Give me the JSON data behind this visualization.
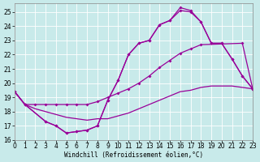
{
  "bg_color": "#c8eaea",
  "line_color": "#990099",
  "grid_color": "#aad4d4",
  "xlim": [
    0,
    23
  ],
  "ylim": [
    16,
    25.6
  ],
  "yticks": [
    16,
    17,
    18,
    19,
    20,
    21,
    22,
    23,
    24,
    25
  ],
  "xticks": [
    0,
    1,
    2,
    3,
    4,
    5,
    6,
    7,
    8,
    9,
    10,
    11,
    12,
    13,
    14,
    15,
    16,
    17,
    18,
    19,
    20,
    21,
    22,
    23
  ],
  "xlabel": "Windchill (Refroidissement éolien,°C)",
  "curve1_x": [
    0,
    1,
    3,
    4,
    5,
    6,
    7,
    8,
    9,
    10,
    11,
    12,
    13,
    14,
    15,
    16,
    17,
    18,
    19,
    20,
    21,
    22,
    23
  ],
  "curve1_y": [
    19.4,
    18.5,
    17.3,
    17.0,
    16.5,
    16.6,
    16.7,
    17.0,
    18.8,
    20.2,
    22.0,
    22.8,
    23.0,
    24.1,
    24.4,
    25.3,
    25.1,
    24.3,
    22.8,
    22.8,
    21.7,
    20.5,
    19.6
  ],
  "curve2_x": [
    0,
    1,
    3,
    4,
    5,
    6,
    7,
    8,
    9,
    10,
    11,
    12,
    13,
    14,
    15,
    16,
    17,
    18,
    19,
    20,
    21,
    22,
    23
  ],
  "curve2_y": [
    19.4,
    18.5,
    17.3,
    17.0,
    16.5,
    16.6,
    16.7,
    17.0,
    18.8,
    20.2,
    22.0,
    22.8,
    23.0,
    24.1,
    24.4,
    25.1,
    25.0,
    24.3,
    22.8,
    22.8,
    21.7,
    20.5,
    19.6
  ],
  "curve3_x": [
    0,
    1,
    2,
    3,
    4,
    5,
    6,
    7,
    8,
    9,
    10,
    11,
    12,
    13,
    14,
    15,
    16,
    17,
    18,
    22,
    23
  ],
  "curve3_y": [
    19.4,
    18.5,
    18.5,
    18.5,
    18.5,
    18.5,
    18.5,
    18.5,
    18.7,
    19.0,
    19.3,
    19.6,
    20.0,
    20.5,
    21.1,
    21.6,
    22.1,
    22.4,
    22.7,
    22.8,
    19.6
  ],
  "curve4_x": [
    0,
    1,
    2,
    3,
    4,
    5,
    6,
    7,
    8,
    9,
    10,
    11,
    12,
    13,
    14,
    15,
    16,
    17,
    18,
    19,
    20,
    21,
    22,
    23
  ],
  "curve4_y": [
    19.4,
    18.5,
    18.2,
    18.0,
    17.8,
    17.6,
    17.5,
    17.4,
    17.5,
    17.5,
    17.7,
    17.9,
    18.2,
    18.5,
    18.8,
    19.1,
    19.4,
    19.5,
    19.7,
    19.8,
    19.8,
    19.8,
    19.7,
    19.6
  ],
  "tick_fontsize": 5.5,
  "xlabel_fontsize": 5.5,
  "marker": "D",
  "markersize": 2.0,
  "linewidth": 0.9
}
